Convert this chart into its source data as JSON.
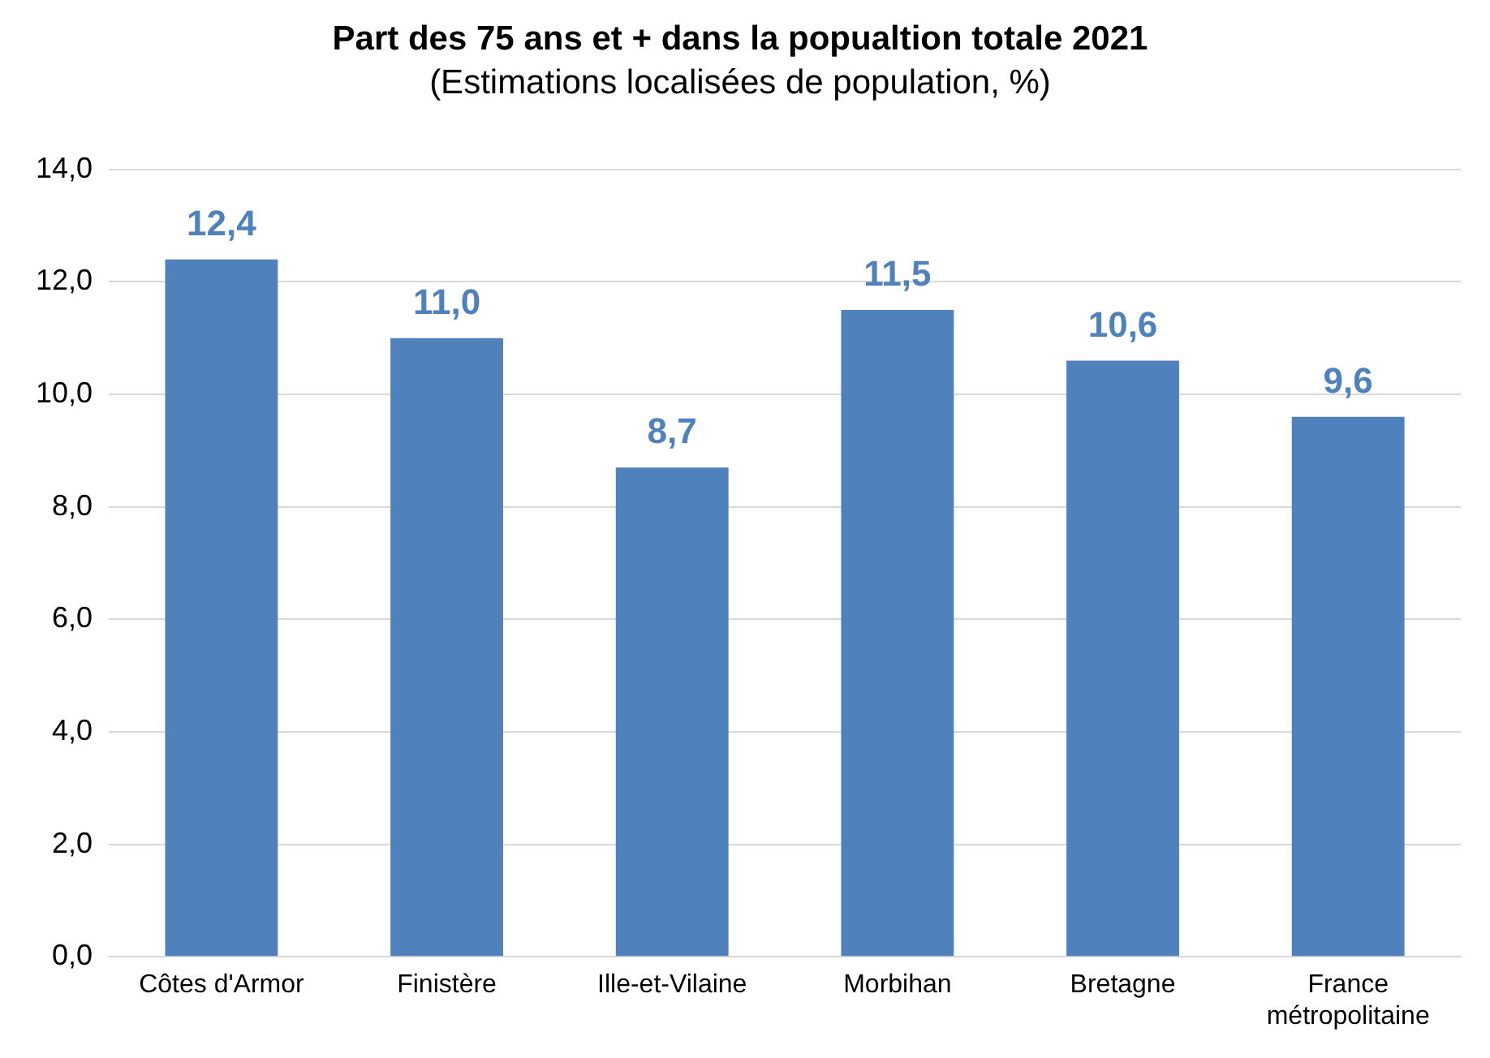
{
  "chart_data": {
    "type": "bar",
    "title": "Part des 75 ans et + dans la popualtion totale 2021",
    "subtitle": "(Estimations localisées de population, %)",
    "categories": [
      "Côtes d'Armor",
      "Finistère",
      "Ille-et-Vilaine",
      "Morbihan",
      "Bretagne",
      "France métropolitaine"
    ],
    "values": [
      12.4,
      11.0,
      8.7,
      11.5,
      10.6,
      9.6
    ],
    "value_labels": [
      "12,4",
      "11,0",
      "8,7",
      "11,5",
      "10,6",
      "9,6"
    ],
    "color": "#4f81bd",
    "ylim": [
      0,
      14
    ],
    "yticks": [
      {
        "value": 0,
        "label": "0,0"
      },
      {
        "value": 2,
        "label": "2,0"
      },
      {
        "value": 4,
        "label": "4,0"
      },
      {
        "value": 6,
        "label": "6,0"
      },
      {
        "value": 8,
        "label": "8,0"
      },
      {
        "value": 10,
        "label": "10,0"
      },
      {
        "value": 12,
        "label": "12,0"
      },
      {
        "value": 14,
        "label": "14,0"
      }
    ],
    "grid": "y",
    "legend": false
  }
}
